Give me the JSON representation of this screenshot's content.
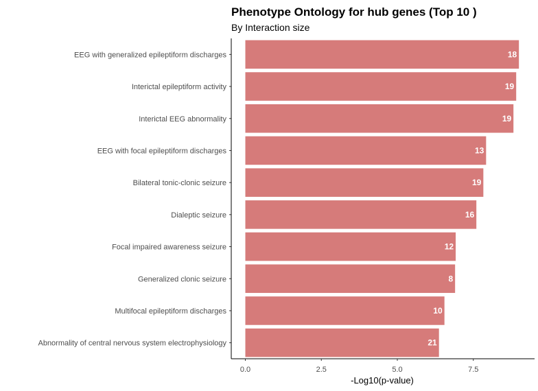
{
  "chart_data": {
    "type": "bar",
    "orientation": "horizontal",
    "title": "Phenotype Ontology for hub genes (Top 10 )",
    "subtitle": "By Interaction size",
    "xlabel": "-Log10(p-value)",
    "ylabel": "",
    "xlim": [
      0,
      9.15
    ],
    "xticks": [
      0,
      2.5,
      5,
      7.5
    ],
    "xtick_labels": [
      "0.0",
      "2.5",
      "5.0",
      "7.5"
    ],
    "grid": false,
    "bar_color": "#d67b7a",
    "categories": [
      "EEG with generalized epileptiform discharges",
      "Interictal epileptiform activity",
      "Interictal EEG abnormality",
      "EEG with focal epileptiform discharges",
      "Bilateral tonic-clonic seizure",
      "Dialeptic seizure",
      "Focal impaired awareness seizure",
      "Generalized clonic seizure",
      "Multifocal epileptiform discharges",
      "Abnormality of central nervous system electrophysiology"
    ],
    "values": [
      9.0,
      8.91,
      8.82,
      7.92,
      7.83,
      7.6,
      6.92,
      6.9,
      6.55,
      6.37
    ],
    "data_labels": [
      "18",
      "19",
      "19",
      "13",
      "19",
      "16",
      "12",
      "8",
      "10",
      "21"
    ]
  }
}
